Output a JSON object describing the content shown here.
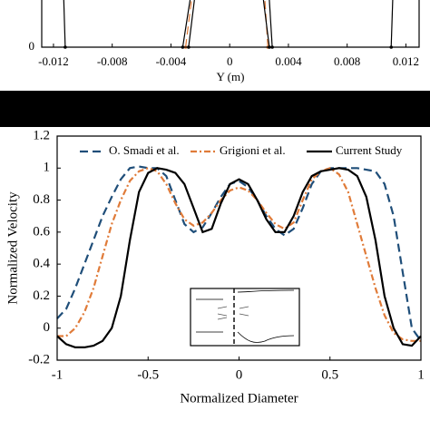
{
  "chart_data": [
    {
      "type": "line",
      "x_label": "Y (m)",
      "xlim": [
        -0.0128,
        0.0129
      ],
      "xticks": [
        -0.012,
        -0.008,
        -0.004,
        0,
        0.004,
        0.008,
        0.012
      ],
      "ylim": [
        0,
        0.05
      ],
      "yticks": [
        0
      ],
      "series": [
        {
          "color": "#000000",
          "style": "solid",
          "x": [
            -0.0112,
            -0.0113
          ],
          "values": [
            0,
            0.05
          ]
        },
        {
          "color": "#000000",
          "style": "solid",
          "x": [
            -0.0032,
            -0.0027
          ],
          "values": [
            0,
            0.05
          ]
        },
        {
          "color": "#000000",
          "style": "solid",
          "x": [
            -0.0028,
            -0.0024
          ],
          "values": [
            0,
            0.05
          ]
        },
        {
          "color": "#e07b39",
          "style": "dashed",
          "x": [
            -0.003,
            -0.0026
          ],
          "values": [
            0,
            0.05
          ]
        },
        {
          "color": "#e07b39",
          "style": "dashed",
          "x": [
            0.0026,
            0.0024
          ],
          "values": [
            0,
            0.05
          ]
        },
        {
          "color": "#000000",
          "style": "solid",
          "x": [
            0.0027,
            0.0023
          ],
          "values": [
            0,
            0.05
          ]
        },
        {
          "color": "#000000",
          "style": "solid",
          "x": [
            0.0029,
            0.0027
          ],
          "values": [
            0,
            0.05
          ]
        },
        {
          "color": "#000000",
          "style": "solid",
          "x": [
            0.011,
            0.0111
          ],
          "values": [
            0,
            0.05
          ]
        }
      ]
    },
    {
      "type": "line",
      "x_label": "Normalized Diameter",
      "y_label": "Normalized Velocity",
      "xlim": [
        -1,
        1
      ],
      "xticks": [
        -1,
        -0.5,
        0,
        0.5,
        1
      ],
      "ylim": [
        -0.2,
        1.2
      ],
      "yticks": [
        -0.2,
        0,
        0.2,
        0.4,
        0.6,
        0.8,
        1,
        1.2
      ],
      "x": [
        -1,
        -0.95,
        -0.9,
        -0.85,
        -0.8,
        -0.75,
        -0.7,
        -0.65,
        -0.6,
        -0.55,
        -0.5,
        -0.45,
        -0.4,
        -0.35,
        -0.3,
        -0.25,
        -0.2,
        -0.15,
        -0.1,
        -0.05,
        0,
        0.05,
        0.1,
        0.15,
        0.2,
        0.25,
        0.3,
        0.35,
        0.4,
        0.45,
        0.5,
        0.55,
        0.6,
        0.65,
        0.7,
        0.75,
        0.8,
        0.85,
        0.9,
        0.95,
        1
      ],
      "series": [
        {
          "name": "O. Smadi et al.",
          "color": "#1f4e79",
          "style": "dashed",
          "values": [
            0.06,
            0.12,
            0.25,
            0.4,
            0.55,
            0.7,
            0.82,
            0.93,
            1.0,
            1.01,
            1.0,
            1.0,
            0.95,
            0.8,
            0.65,
            0.6,
            0.63,
            0.72,
            0.82,
            0.9,
            0.92,
            0.88,
            0.8,
            0.7,
            0.62,
            0.58,
            0.62,
            0.75,
            0.9,
            0.98,
            1.0,
            1.0,
            1.0,
            1.0,
            0.99,
            0.98,
            0.9,
            0.7,
            0.35,
            0.0,
            -0.08
          ]
        },
        {
          "name": "Grigioni et al.",
          "color": "#e07b39",
          "style": "dashdot",
          "values": [
            -0.05,
            -0.05,
            0.0,
            0.1,
            0.25,
            0.45,
            0.65,
            0.8,
            0.92,
            0.98,
            1.0,
            0.98,
            0.9,
            0.78,
            0.68,
            0.64,
            0.66,
            0.72,
            0.8,
            0.86,
            0.88,
            0.86,
            0.8,
            0.72,
            0.65,
            0.62,
            0.66,
            0.8,
            0.93,
            0.98,
            1.0,
            0.96,
            0.85,
            0.65,
            0.45,
            0.25,
            0.08,
            -0.03,
            -0.07,
            -0.08,
            -0.08
          ]
        },
        {
          "name": "Current Study",
          "color": "#000000",
          "style": "solid",
          "values": [
            -0.05,
            -0.1,
            -0.12,
            -0.12,
            -0.11,
            -0.08,
            0.0,
            0.2,
            0.55,
            0.85,
            0.97,
            1.0,
            0.99,
            0.97,
            0.9,
            0.75,
            0.6,
            0.62,
            0.78,
            0.9,
            0.93,
            0.9,
            0.8,
            0.68,
            0.6,
            0.6,
            0.7,
            0.85,
            0.95,
            0.98,
            0.99,
            1.0,
            0.99,
            0.95,
            0.82,
            0.55,
            0.2,
            0.0,
            -0.1,
            -0.11,
            -0.05
          ]
        }
      ]
    }
  ]
}
